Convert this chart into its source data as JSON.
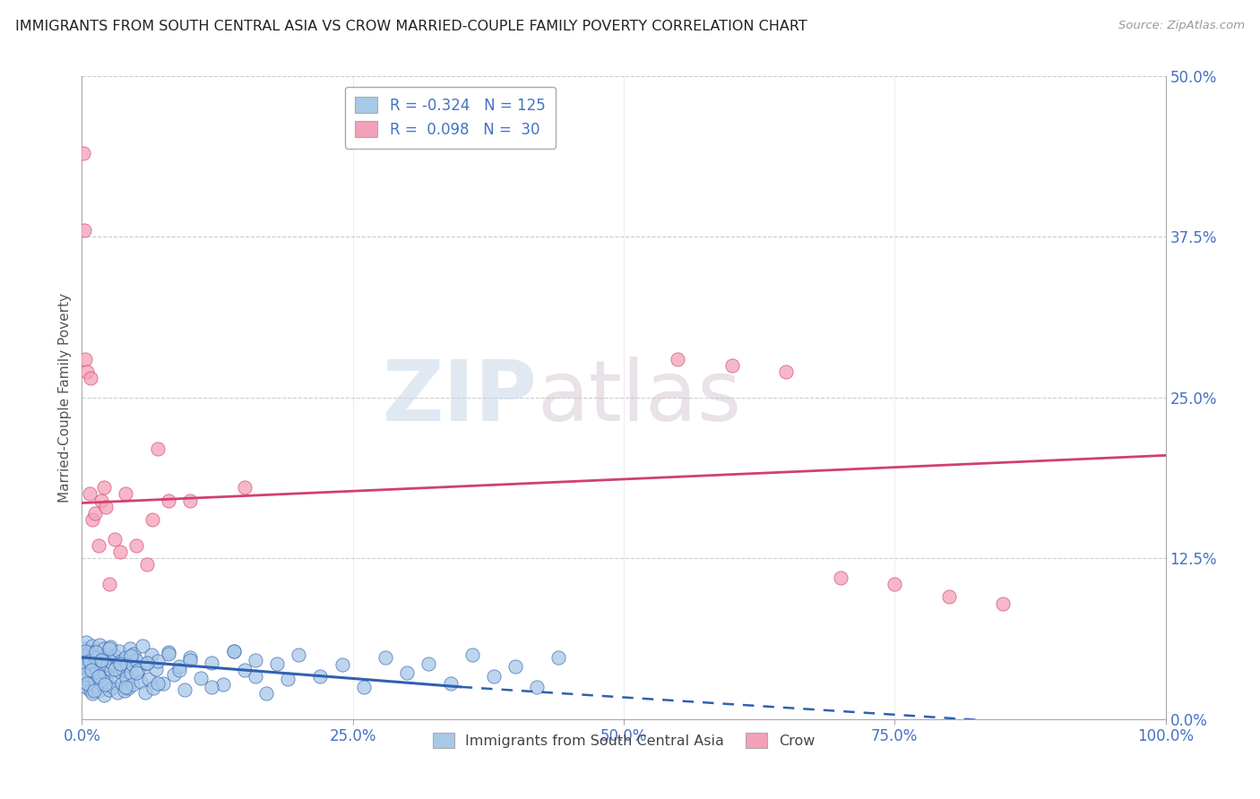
{
  "title": "IMMIGRANTS FROM SOUTH CENTRAL ASIA VS CROW MARRIED-COUPLE FAMILY POVERTY CORRELATION CHART",
  "source": "Source: ZipAtlas.com",
  "xlabel": "Immigrants from South Central Asia",
  "ylabel": "Married-Couple Family Poverty",
  "legend_label_blue": "Immigrants from South Central Asia",
  "legend_label_pink": "Crow",
  "R_blue": -0.324,
  "N_blue": 125,
  "R_pink": 0.098,
  "N_pink": 30,
  "color_blue": "#a8c8e8",
  "color_pink": "#f4a0b8",
  "line_color_blue": "#3060b0",
  "line_color_pink": "#d04070",
  "watermark_zip": "ZIP",
  "watermark_atlas": "atlas",
  "xlim": [
    0.0,
    1.0
  ],
  "ylim": [
    0.0,
    0.5
  ],
  "yticks_right": [
    0.0,
    0.125,
    0.25,
    0.375,
    0.5
  ],
  "ytick_labels_right": [
    "0.0%",
    "12.5%",
    "25.0%",
    "37.5%",
    "50.0%"
  ],
  "xtick_labels": [
    "0.0%",
    "25.0%",
    "50.0%",
    "75.0%",
    "100.0%"
  ],
  "blue_scatter_x": [
    0.001,
    0.002,
    0.003,
    0.003,
    0.004,
    0.004,
    0.005,
    0.005,
    0.006,
    0.006,
    0.007,
    0.007,
    0.008,
    0.008,
    0.009,
    0.009,
    0.01,
    0.01,
    0.011,
    0.011,
    0.012,
    0.013,
    0.013,
    0.014,
    0.015,
    0.015,
    0.016,
    0.017,
    0.018,
    0.018,
    0.019,
    0.02,
    0.02,
    0.021,
    0.022,
    0.023,
    0.024,
    0.025,
    0.026,
    0.027,
    0.028,
    0.029,
    0.03,
    0.031,
    0.032,
    0.033,
    0.034,
    0.035,
    0.036,
    0.037,
    0.038,
    0.039,
    0.04,
    0.041,
    0.042,
    0.043,
    0.044,
    0.045,
    0.046,
    0.047,
    0.048,
    0.05,
    0.052,
    0.054,
    0.056,
    0.058,
    0.06,
    0.062,
    0.064,
    0.066,
    0.068,
    0.07,
    0.075,
    0.08,
    0.085,
    0.09,
    0.095,
    0.1,
    0.11,
    0.12,
    0.13,
    0.14,
    0.15,
    0.16,
    0.17,
    0.18,
    0.19,
    0.2,
    0.22,
    0.24,
    0.26,
    0.28,
    0.3,
    0.32,
    0.34,
    0.36,
    0.38,
    0.4,
    0.42,
    0.44,
    0.001,
    0.002,
    0.003,
    0.005,
    0.007,
    0.009,
    0.011,
    0.013,
    0.015,
    0.018,
    0.021,
    0.025,
    0.03,
    0.035,
    0.04,
    0.045,
    0.05,
    0.06,
    0.07,
    0.08,
    0.09,
    0.1,
    0.12,
    0.14,
    0.16
  ],
  "blue_scatter_y": [
    0.055,
    0.048,
    0.042,
    0.035,
    0.06,
    0.025,
    0.05,
    0.032,
    0.045,
    0.028,
    0.052,
    0.038,
    0.047,
    0.022,
    0.04,
    0.033,
    0.057,
    0.02,
    0.043,
    0.031,
    0.053,
    0.026,
    0.048,
    0.037,
    0.044,
    0.022,
    0.058,
    0.033,
    0.046,
    0.028,
    0.041,
    0.055,
    0.019,
    0.036,
    0.05,
    0.029,
    0.042,
    0.023,
    0.056,
    0.038,
    0.044,
    0.025,
    0.049,
    0.033,
    0.041,
    0.021,
    0.053,
    0.037,
    0.045,
    0.028,
    0.039,
    0.022,
    0.048,
    0.032,
    0.042,
    0.024,
    0.055,
    0.036,
    0.043,
    0.027,
    0.051,
    0.046,
    0.038,
    0.029,
    0.057,
    0.021,
    0.043,
    0.031,
    0.05,
    0.024,
    0.039,
    0.045,
    0.028,
    0.052,
    0.035,
    0.041,
    0.023,
    0.048,
    0.032,
    0.044,
    0.027,
    0.053,
    0.038,
    0.046,
    0.02,
    0.043,
    0.031,
    0.05,
    0.033,
    0.042,
    0.025,
    0.048,
    0.036,
    0.043,
    0.028,
    0.05,
    0.033,
    0.041,
    0.025,
    0.048,
    0.042,
    0.035,
    0.053,
    0.028,
    0.045,
    0.038,
    0.022,
    0.052,
    0.033,
    0.046,
    0.027,
    0.055,
    0.039,
    0.043,
    0.025,
    0.049,
    0.036,
    0.044,
    0.028,
    0.051,
    0.038,
    0.046,
    0.025,
    0.053,
    0.033
  ],
  "pink_scatter_x": [
    0.001,
    0.002,
    0.003,
    0.005,
    0.007,
    0.008,
    0.01,
    0.012,
    0.015,
    0.018,
    0.02,
    0.022,
    0.025,
    0.03,
    0.035,
    0.04,
    0.05,
    0.06,
    0.065,
    0.07,
    0.08,
    0.1,
    0.15,
    0.55,
    0.6,
    0.65,
    0.7,
    0.75,
    0.8,
    0.85
  ],
  "pink_scatter_y": [
    0.44,
    0.38,
    0.28,
    0.27,
    0.175,
    0.265,
    0.155,
    0.16,
    0.135,
    0.17,
    0.18,
    0.165,
    0.105,
    0.14,
    0.13,
    0.175,
    0.135,
    0.12,
    0.155,
    0.21,
    0.17,
    0.17,
    0.18,
    0.28,
    0.275,
    0.27,
    0.11,
    0.105,
    0.095,
    0.09
  ],
  "blue_trend_x_start": 0.0,
  "blue_trend_x_solid_end": 0.35,
  "blue_trend_x_end": 1.0,
  "blue_trend_y_start": 0.048,
  "blue_trend_y_solid_end": 0.025,
  "blue_trend_y_end": -0.01,
  "pink_trend_x_start": 0.0,
  "pink_trend_x_end": 1.0,
  "pink_trend_y_start": 0.168,
  "pink_trend_y_end": 0.205,
  "background_color": "#ffffff",
  "grid_color": "#cccccc",
  "title_color": "#222222",
  "axis_label_color": "#555555",
  "tick_label_color_right": "#4472c4",
  "tick_label_color_bottom": "#4472c4"
}
